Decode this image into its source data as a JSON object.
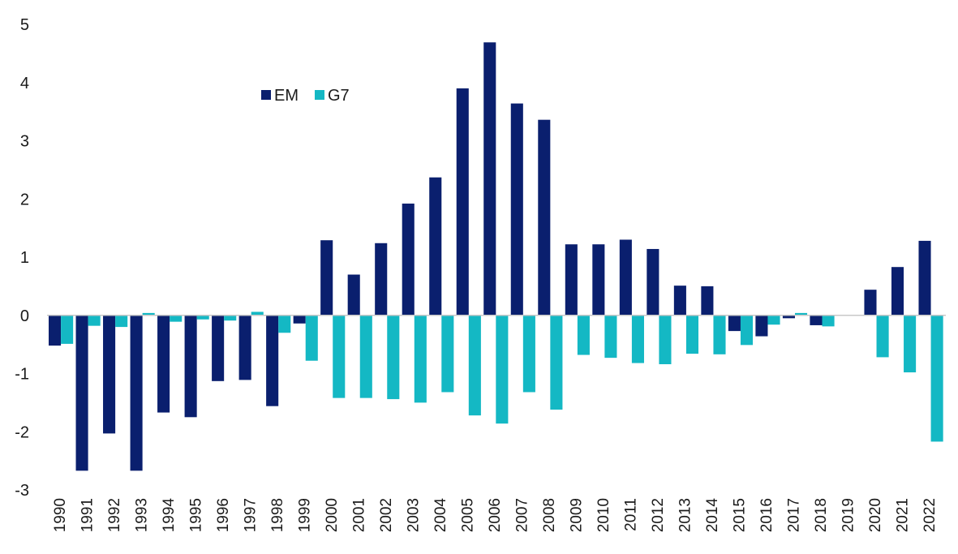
{
  "chart_data": {
    "type": "bar",
    "title": "",
    "xlabel": "",
    "ylabel": "",
    "ylim": [
      -3,
      5
    ],
    "yticks": [
      "5",
      "4",
      "3",
      "2",
      "1",
      "0",
      "-1",
      "-2",
      "-3"
    ],
    "grid": false,
    "legend_position": "top-left",
    "categories": [
      "1990",
      "1991",
      "1992",
      "1993",
      "1994",
      "1995",
      "1996",
      "1997",
      "1998",
      "1999",
      "2000",
      "2001",
      "2002",
      "2003",
      "2004",
      "2005",
      "2006",
      "2007",
      "2008",
      "2009",
      "2010",
      "2011",
      "2012",
      "2013",
      "2014",
      "2015",
      "2016",
      "2017",
      "2018",
      "2019",
      "2020",
      "2021",
      "2022"
    ],
    "series": [
      {
        "name": "EM",
        "color": "#0a1f6e",
        "values": [
          -0.52,
          -2.67,
          -2.03,
          -2.67,
          -1.67,
          -1.75,
          -1.13,
          -1.11,
          -1.56,
          -0.14,
          1.29,
          0.7,
          1.24,
          1.92,
          2.37,
          3.9,
          4.69,
          3.64,
          3.36,
          1.22,
          1.22,
          1.3,
          1.14,
          0.51,
          0.5,
          -0.27,
          -0.36,
          -0.05,
          -0.17,
          0.0,
          0.44,
          0.83,
          1.28
        ]
      },
      {
        "name": "G7",
        "color": "#14b8c4",
        "values": [
          -0.49,
          -0.18,
          -0.2,
          0.04,
          -0.11,
          -0.07,
          -0.09,
          0.06,
          -0.3,
          -0.78,
          -1.42,
          -1.42,
          -1.44,
          -1.5,
          -1.32,
          -1.72,
          -1.86,
          -1.32,
          -1.62,
          -0.68,
          -0.73,
          -0.82,
          -0.84,
          -0.66,
          -0.67,
          -0.51,
          -0.16,
          0.04,
          -0.19,
          0.0,
          -0.72,
          -0.98,
          -2.17
        ]
      }
    ]
  }
}
